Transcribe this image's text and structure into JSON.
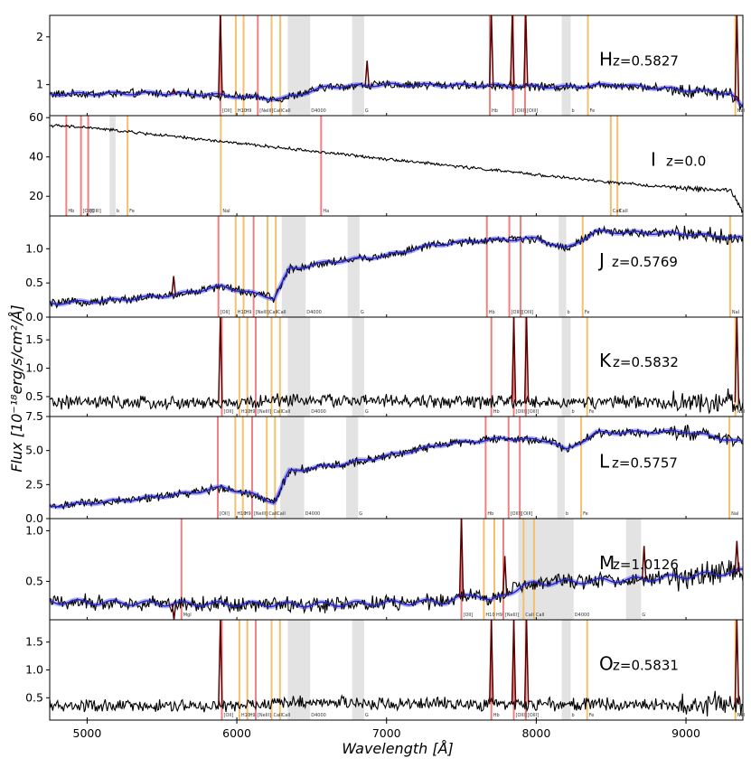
{
  "figure": {
    "xlabel": "Wavelength [Å]",
    "ylabel": "Flux [10⁻¹⁸erg/s/cm²/Å]"
  },
  "chart_data": [
    {
      "type": "line",
      "letter": "H",
      "z_label": "z=0.5827",
      "xlim": [
        4750,
        9380
      ],
      "ylim": [
        0.35,
        2.45
      ],
      "yticks": [
        1,
        2
      ],
      "ytick_labels": [
        "1",
        "2"
      ],
      "continuum": [
        [
          4750,
          0.8
        ],
        [
          5500,
          0.82
        ],
        [
          5880,
          0.78
        ],
        [
          6150,
          0.72
        ],
        [
          6300,
          0.7
        ],
        [
          6600,
          0.95
        ],
        [
          7000,
          1.0
        ],
        [
          7700,
          0.98
        ],
        [
          8200,
          0.95
        ],
        [
          8500,
          1.0
        ],
        [
          9300,
          0.82
        ],
        [
          9380,
          0.5
        ]
      ],
      "noise": 0.07,
      "model_series": true,
      "spikes": [
        [
          5578,
          0.9
        ],
        [
          5890,
          2.5
        ],
        [
          6870,
          1.5
        ],
        [
          7700,
          2.5
        ],
        [
          7840,
          2.5
        ],
        [
          7930,
          2.5
        ],
        [
          9340,
          2.5
        ]
      ],
      "lines": [
        {
          "x": 5890,
          "color": "#f08080",
          "label": "[OII]"
        },
        {
          "x": 5993,
          "color": "#f5c06b",
          "label": "H10"
        },
        {
          "x": 6045,
          "color": "#f5c06b",
          "label": "H9"
        },
        {
          "x": 6140,
          "color": "#f08080",
          "label": "[NeIII]"
        },
        {
          "x": 6232,
          "color": "#f5c06b",
          "label": "CaII"
        },
        {
          "x": 6290,
          "color": "#f5c06b",
          "label": "CaII"
        },
        {
          "x": 7690,
          "color": "#f08080",
          "label": "Hb"
        },
        {
          "x": 7845,
          "color": "#f08080",
          "label": "[OIII]"
        },
        {
          "x": 7925,
          "color": "#f08080",
          "label": "[OIII]"
        },
        {
          "x": 8345,
          "color": "#f5c06b",
          "label": "Fe"
        },
        {
          "x": 9330,
          "color": "#f5c06b",
          "label": "NaI"
        }
      ],
      "bands": [
        {
          "x0": 6340,
          "x1": 6490,
          "label": "D4000"
        },
        {
          "x0": 6770,
          "x1": 6850,
          "label": "G"
        },
        {
          "x0": 8170,
          "x1": 8230,
          "label": "b"
        }
      ]
    },
    {
      "type": "line",
      "letter": "I",
      "z_label": "z=0.0",
      "xlim": [
        4750,
        9380
      ],
      "ylim": [
        10,
        61
      ],
      "yticks": [
        20,
        40,
        60
      ],
      "ytick_labels": [
        "20",
        "40",
        "60"
      ],
      "continuum": [
        [
          4750,
          56
        ],
        [
          5000,
          55
        ],
        [
          5500,
          51
        ],
        [
          6000,
          47
        ],
        [
          6500,
          43
        ],
        [
          7000,
          39
        ],
        [
          7500,
          35
        ],
        [
          8000,
          31
        ],
        [
          8500,
          27
        ],
        [
          9000,
          24
        ],
        [
          9300,
          23
        ],
        [
          9380,
          12
        ]
      ],
      "noise": 0.6,
      "model_series": false,
      "spikes": [],
      "lines": [
        {
          "x": 4861,
          "color": "#f08080",
          "label": "Hb"
        },
        {
          "x": 4959,
          "color": "#f08080",
          "label": "[OIII]"
        },
        {
          "x": 5007,
          "color": "#f08080",
          "label": "[OIII]"
        },
        {
          "x": 5270,
          "color": "#f5c06b",
          "label": "Fe"
        },
        {
          "x": 5893,
          "color": "#f5c06b",
          "label": "NaI"
        },
        {
          "x": 6563,
          "color": "#f08080",
          "label": "Ha"
        },
        {
          "x": 8498,
          "color": "#f5c06b",
          "label": "CaII"
        },
        {
          "x": 8542,
          "color": "#f5c06b",
          "label": "CaII"
        }
      ],
      "bands": [
        {
          "x0": 5150,
          "x1": 5190,
          "label": "b"
        }
      ]
    },
    {
      "type": "line",
      "letter": "J",
      "z_label": "z=0.5769",
      "xlim": [
        4750,
        9380
      ],
      "ylim": [
        0,
        1.48
      ],
      "yticks": [
        0.0,
        0.5,
        1.0
      ],
      "ytick_labels": [
        "0.0",
        "0.5",
        "1.0"
      ],
      "continuum": [
        [
          4750,
          0.2
        ],
        [
          5200,
          0.25
        ],
        [
          5600,
          0.33
        ],
        [
          5900,
          0.45
        ],
        [
          6100,
          0.35
        ],
        [
          6250,
          0.28
        ],
        [
          6350,
          0.7
        ],
        [
          6600,
          0.8
        ],
        [
          7000,
          0.9
        ],
        [
          7300,
          1.05
        ],
        [
          7600,
          1.12
        ],
        [
          8000,
          1.15
        ],
        [
          8200,
          1.0
        ],
        [
          8400,
          1.25
        ],
        [
          9000,
          1.22
        ],
        [
          9380,
          1.15
        ]
      ],
      "noise": 0.05,
      "model_series": true,
      "spikes": [
        [
          5578,
          0.6
        ]
      ],
      "lines": [
        {
          "x": 5877,
          "color": "#f08080",
          "label": "[OII]"
        },
        {
          "x": 5992,
          "color": "#f5c06b",
          "label": "H10"
        },
        {
          "x": 6045,
          "color": "#f5c06b",
          "label": "H9"
        },
        {
          "x": 6112,
          "color": "#f08080",
          "label": "[NeIII]"
        },
        {
          "x": 6205,
          "color": "#f5c06b",
          "label": "CaII"
        },
        {
          "x": 6260,
          "color": "#f5c06b",
          "label": "CaII"
        },
        {
          "x": 7670,
          "color": "#f08080",
          "label": "Hb"
        },
        {
          "x": 7820,
          "color": "#f08080",
          "label": "[OIII]"
        },
        {
          "x": 7895,
          "color": "#f08080",
          "label": "[OIII]"
        },
        {
          "x": 8310,
          "color": "#f5c06b",
          "label": "Fe"
        },
        {
          "x": 9295,
          "color": "#f5c06b",
          "label": "NaI"
        }
      ],
      "bands": [
        {
          "x0": 6300,
          "x1": 6460,
          "label": "D4000"
        },
        {
          "x0": 6740,
          "x1": 6820,
          "label": "G"
        },
        {
          "x0": 8150,
          "x1": 8200,
          "label": "b"
        }
      ]
    },
    {
      "type": "line",
      "letter": "K",
      "z_label": "z=0.5832",
      "xlim": [
        4750,
        9380
      ],
      "ylim": [
        0.15,
        1.9
      ],
      "yticks": [
        0.5,
        1.0,
        1.5
      ],
      "ytick_labels": [
        "0.5",
        "1.0",
        "1.5"
      ],
      "continuum": [
        [
          4750,
          0.4
        ],
        [
          6000,
          0.38
        ],
        [
          6300,
          0.45
        ],
        [
          7000,
          0.42
        ],
        [
          8000,
          0.4
        ],
        [
          9380,
          0.4
        ]
      ],
      "noise": 0.09,
      "model_series": false,
      "spikes": [
        [
          5890,
          1.9
        ],
        [
          7850,
          1.9
        ],
        [
          7935,
          1.9
        ],
        [
          9340,
          1.9
        ]
      ],
      "lines": [
        {
          "x": 5900,
          "color": "#f08080",
          "label": "[OII]"
        },
        {
          "x": 6017,
          "color": "#f5c06b",
          "label": "H10"
        },
        {
          "x": 6070,
          "color": "#f5c06b",
          "label": "H9"
        },
        {
          "x": 6126,
          "color": "#f08080",
          "label": "[NeIII]"
        },
        {
          "x": 6232,
          "color": "#f5c06b",
          "label": "CaII"
        },
        {
          "x": 6288,
          "color": "#f5c06b",
          "label": "CaII"
        },
        {
          "x": 7700,
          "color": "#f08080",
          "label": "Hb"
        },
        {
          "x": 7850,
          "color": "#f08080",
          "label": "[OIII]"
        },
        {
          "x": 7930,
          "color": "#f08080",
          "label": "[OIII]"
        },
        {
          "x": 8340,
          "color": "#f5c06b",
          "label": "Fe"
        },
        {
          "x": 9330,
          "color": "#f5c06b",
          "label": "NaI"
        }
      ],
      "bands": [
        {
          "x0": 6340,
          "x1": 6490,
          "label": "D4000"
        },
        {
          "x0": 6770,
          "x1": 6850,
          "label": "G"
        },
        {
          "x0": 8170,
          "x1": 8230,
          "label": "b"
        }
      ]
    },
    {
      "type": "line",
      "letter": "L",
      "z_label": "z=0.5757",
      "xlim": [
        4750,
        9380
      ],
      "ylim": [
        0,
        7.5
      ],
      "yticks": [
        0.0,
        2.5,
        5.0,
        7.5
      ],
      "ytick_labels": [
        "0.0",
        "2.5",
        "5.0",
        "7.5"
      ],
      "continuum": [
        [
          4750,
          0.9
        ],
        [
          5300,
          1.4
        ],
        [
          5700,
          1.9
        ],
        [
          5900,
          2.3
        ],
        [
          6100,
          1.8
        ],
        [
          6250,
          1.2
        ],
        [
          6350,
          3.5
        ],
        [
          6700,
          4.0
        ],
        [
          7000,
          4.6
        ],
        [
          7400,
          5.5
        ],
        [
          7800,
          5.9
        ],
        [
          8100,
          5.7
        ],
        [
          8200,
          5.0
        ],
        [
          8400,
          6.3
        ],
        [
          9000,
          6.4
        ],
        [
          9380,
          5.6
        ]
      ],
      "noise": 0.25,
      "model_series": true,
      "spikes": [],
      "lines": [
        {
          "x": 5873,
          "color": "#f08080",
          "label": "[OII]"
        },
        {
          "x": 5990,
          "color": "#f5c06b",
          "label": "H10"
        },
        {
          "x": 6040,
          "color": "#f5c06b",
          "label": "H9"
        },
        {
          "x": 6102,
          "color": "#f08080",
          "label": "[NeIII]"
        },
        {
          "x": 6200,
          "color": "#f5c06b",
          "label": "CaII"
        },
        {
          "x": 6255,
          "color": "#f5c06b",
          "label": "CaII"
        },
        {
          "x": 7662,
          "color": "#f08080",
          "label": "Hb"
        },
        {
          "x": 7815,
          "color": "#f08080",
          "label": "[OIII]"
        },
        {
          "x": 7890,
          "color": "#f08080",
          "label": "[OIII]"
        },
        {
          "x": 8300,
          "color": "#f5c06b",
          "label": "Fe"
        },
        {
          "x": 9290,
          "color": "#f5c06b",
          "label": "NaI"
        }
      ],
      "bands": [
        {
          "x0": 6290,
          "x1": 6450,
          "label": "D4000"
        },
        {
          "x0": 6730,
          "x1": 6810,
          "label": "G"
        },
        {
          "x0": 8140,
          "x1": 8190,
          "label": "b"
        }
      ]
    },
    {
      "type": "line",
      "letter": "M",
      "z_label": "z=1.0126",
      "xlim": [
        4750,
        9380
      ],
      "ylim": [
        0.12,
        1.12
      ],
      "yticks": [
        0.5,
        1.0
      ],
      "ytick_labels": [
        "0.5",
        "1.0"
      ],
      "continuum": [
        [
          4750,
          0.3
        ],
        [
          5500,
          0.28
        ],
        [
          6500,
          0.27
        ],
        [
          7400,
          0.3
        ],
        [
          7600,
          0.38
        ],
        [
          7700,
          0.3
        ],
        [
          7900,
          0.45
        ],
        [
          8000,
          0.48
        ],
        [
          8300,
          0.5
        ],
        [
          8700,
          0.52
        ],
        [
          9000,
          0.55
        ],
        [
          9380,
          0.6
        ]
      ],
      "noise": 0.06,
      "model_series": true,
      "spikes": [
        [
          5580,
          0.12
        ],
        [
          7500,
          1.15
        ],
        [
          7790,
          0.75
        ],
        [
          8720,
          0.85
        ],
        [
          9340,
          0.9
        ]
      ],
      "lines": [
        {
          "x": 5630,
          "color": "#f08080",
          "label": "MgI"
        },
        {
          "x": 7500,
          "color": "#f08080",
          "label": "[OII]"
        },
        {
          "x": 7650,
          "color": "#f5c06b",
          "label": "H10"
        },
        {
          "x": 7720,
          "color": "#f5c06b",
          "label": "H9"
        },
        {
          "x": 7780,
          "color": "#f08080",
          "label": "[NeIII]"
        },
        {
          "x": 7915,
          "color": "#f5c06b",
          "label": "CaII"
        },
        {
          "x": 7985,
          "color": "#f5c06b",
          "label": "CaII"
        }
      ],
      "bands": [
        {
          "x0": 7880,
          "x1": 8250,
          "label": "D4000"
        },
        {
          "x0": 8600,
          "x1": 8700,
          "label": "G"
        }
      ]
    },
    {
      "type": "line",
      "letter": "O",
      "z_label": "z=0.5831",
      "xlim": [
        4750,
        9380
      ],
      "ylim": [
        0.1,
        1.9
      ],
      "yticks": [
        0.5,
        1.0,
        1.5
      ],
      "ytick_labels": [
        "0.5",
        "1.0",
        "1.5"
      ],
      "continuum": [
        [
          4750,
          0.35
        ],
        [
          6000,
          0.35
        ],
        [
          6300,
          0.42
        ],
        [
          7000,
          0.4
        ],
        [
          8000,
          0.38
        ],
        [
          9380,
          0.38
        ]
      ],
      "noise": 0.09,
      "model_series": false,
      "spikes": [
        [
          5890,
          1.9
        ],
        [
          7700,
          1.9
        ],
        [
          7850,
          1.9
        ],
        [
          7935,
          1.9
        ],
        [
          9340,
          1.9
        ]
      ],
      "lines": [
        {
          "x": 5900,
          "color": "#f08080",
          "label": "[OII]"
        },
        {
          "x": 6017,
          "color": "#f5c06b",
          "label": "H10"
        },
        {
          "x": 6070,
          "color": "#f5c06b",
          "label": "H9"
        },
        {
          "x": 6126,
          "color": "#f08080",
          "label": "[NeIII]"
        },
        {
          "x": 6232,
          "color": "#f5c06b",
          "label": "CaII"
        },
        {
          "x": 6288,
          "color": "#f5c06b",
          "label": "CaII"
        },
        {
          "x": 7700,
          "color": "#f08080",
          "label": "Hb"
        },
        {
          "x": 7850,
          "color": "#f08080",
          "label": "[OIII]"
        },
        {
          "x": 7930,
          "color": "#f08080",
          "label": "[OIII]"
        },
        {
          "x": 8340,
          "color": "#f5c06b",
          "label": "Fe"
        },
        {
          "x": 9330,
          "color": "#f5c06b",
          "label": "NaI"
        }
      ],
      "bands": [
        {
          "x0": 6340,
          "x1": 6490,
          "label": "D4000"
        },
        {
          "x0": 6770,
          "x1": 6850,
          "label": "G"
        },
        {
          "x0": 8170,
          "x1": 8230,
          "label": "b"
        }
      ]
    }
  ],
  "xticks": [
    5000,
    6000,
    7000,
    8000,
    9000
  ],
  "xtick_labels": [
    "5000",
    "6000",
    "7000",
    "8000",
    "9000"
  ],
  "colors": {
    "observed": "#000000",
    "model": "#2222cc",
    "model_band": "#7777ee",
    "emission_line": "#f08080",
    "absorption_line": "#f5c06b",
    "band": "#d9d9d9"
  }
}
